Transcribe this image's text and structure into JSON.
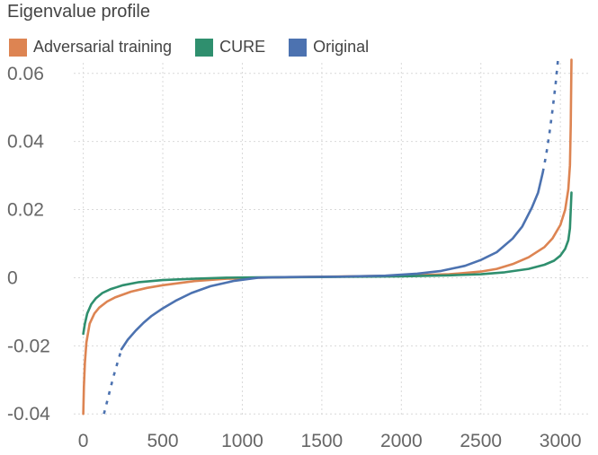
{
  "chart_data": {
    "type": "line",
    "title": "Eigenvalue profile",
    "xlabel": "",
    "ylabel": "",
    "xlim": [
      -60,
      3180
    ],
    "ylim": [
      -0.041,
      0.061
    ],
    "x_ticks": [
      0,
      500,
      1000,
      1500,
      2000,
      2500,
      3000
    ],
    "x_tick_labels": [
      "0",
      "500",
      "1000",
      "1500",
      "2000",
      "2500",
      "3000"
    ],
    "y_ticks": [
      0.06,
      0.04,
      0.02,
      0,
      -0.02,
      -0.04
    ],
    "y_tick_labels": [
      "0.06",
      "0.04",
      "0.02",
      "0",
      "-0.02",
      "-0.04"
    ],
    "grid": true,
    "legend_position": "top-left",
    "series": [
      {
        "name": "Adversarial training",
        "color": "#dd8452",
        "dash": false,
        "x": [
          0,
          4,
          10,
          20,
          40,
          70,
          100,
          150,
          200,
          300,
          400,
          500,
          700,
          900,
          1100,
          1500,
          2000,
          2300,
          2500,
          2600,
          2700,
          2800,
          2900,
          2950,
          3000,
          3030,
          3050,
          3060,
          3065,
          3070
        ],
        "values": [
          -0.04,
          -0.032,
          -0.025,
          -0.019,
          -0.0135,
          -0.0105,
          -0.0088,
          -0.007,
          -0.0058,
          -0.0041,
          -0.003,
          -0.0022,
          -0.001,
          -0.0003,
          0.0,
          0.0003,
          0.0006,
          0.001,
          0.0018,
          0.0026,
          0.004,
          0.006,
          0.009,
          0.0115,
          0.0155,
          0.02,
          0.026,
          0.033,
          0.045,
          0.064
        ]
      },
      {
        "name": "CURE",
        "color": "#2f8f6e",
        "dash": false,
        "x": [
          0,
          10,
          25,
          50,
          80,
          120,
          170,
          250,
          350,
          500,
          700,
          900,
          1100,
          1500,
          2000,
          2300,
          2500,
          2650,
          2800,
          2900,
          2960,
          3000,
          3030,
          3050,
          3060,
          3070
        ],
        "values": [
          -0.0165,
          -0.0135,
          -0.0105,
          -0.0078,
          -0.006,
          -0.0045,
          -0.0034,
          -0.0022,
          -0.0013,
          -0.0007,
          -0.0003,
          0.0,
          0.0001,
          0.0002,
          0.0004,
          0.0007,
          0.001,
          0.0016,
          0.0026,
          0.0038,
          0.005,
          0.0065,
          0.0085,
          0.011,
          0.0145,
          0.025
        ]
      },
      {
        "name": "Original",
        "color": "#4c72b0",
        "dash": false,
        "x": [
          240,
          280,
          330,
          380,
          430,
          500,
          580,
          680,
          800,
          950,
          1100,
          1300,
          1600,
          1900,
          2100,
          2250,
          2400,
          2500,
          2600,
          2700,
          2760,
          2820,
          2860,
          2890
        ],
        "values": [
          -0.021,
          -0.0182,
          -0.0155,
          -0.0132,
          -0.0112,
          -0.009,
          -0.0068,
          -0.0045,
          -0.0025,
          -0.0009,
          0.0,
          0.0002,
          0.0003,
          0.0006,
          0.0012,
          0.002,
          0.0035,
          0.0052,
          0.0075,
          0.0115,
          0.015,
          0.0205,
          0.025,
          0.031
        ]
      },
      {
        "name": "Original",
        "color": "#4c72b0",
        "dash": true,
        "x": [
          130,
          160,
          190,
          220,
          240
        ],
        "values": [
          -0.04,
          -0.0345,
          -0.029,
          -0.0242,
          -0.021
        ]
      },
      {
        "name": "Original",
        "color": "#4c72b0",
        "dash": true,
        "x": [
          2890,
          2910,
          2930,
          2950,
          2970,
          2985
        ],
        "values": [
          0.031,
          0.036,
          0.042,
          0.049,
          0.057,
          0.064
        ]
      }
    ]
  },
  "legend": {
    "items": [
      {
        "label": "Adversarial training",
        "color": "#dd8452"
      },
      {
        "label": "CURE",
        "color": "#2f8f6e"
      },
      {
        "label": "Original",
        "color": "#4c72b0"
      }
    ]
  }
}
